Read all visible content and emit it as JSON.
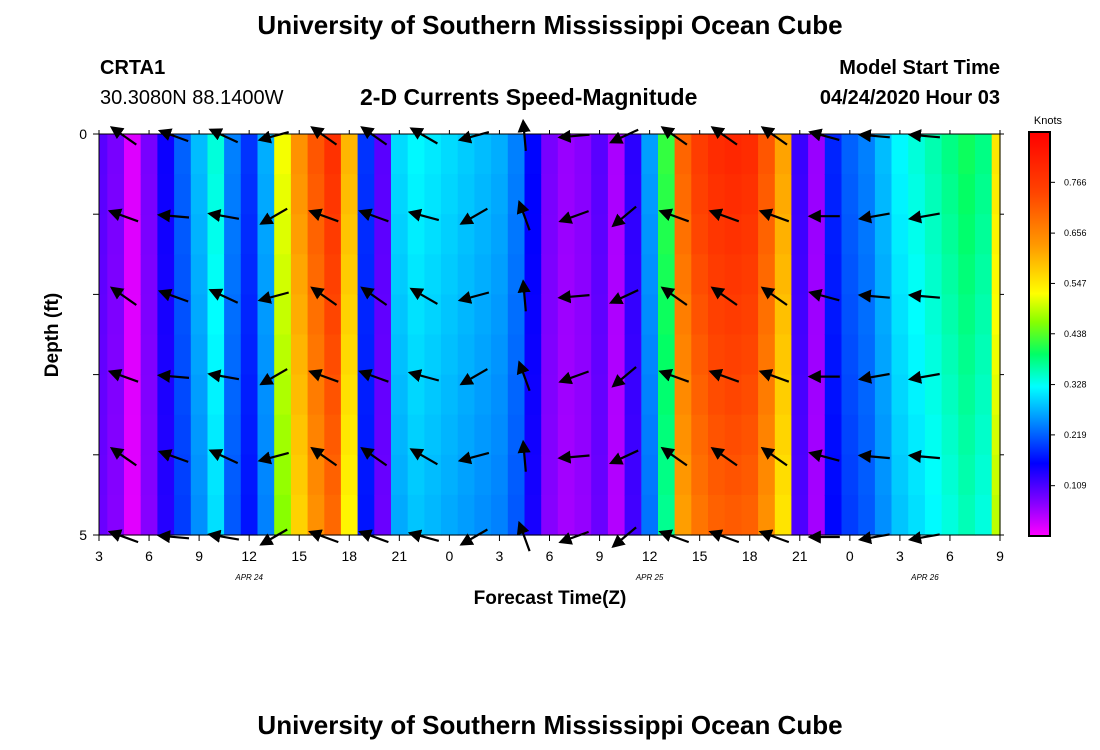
{
  "page": {
    "title_top": "University of Southern Mississippi Ocean Cube",
    "title_bottom": "University of Southern Mississippi Ocean Cube",
    "station": "CRTA1",
    "location": "30.3080N 88.1400W",
    "plot_title": "2-D Currents Speed-Magnitude",
    "model_start_label": "Model Start Time",
    "model_start_value": "04/24/2020 Hour 03"
  },
  "chart_data": {
    "type": "heatmap",
    "title": "2-D Currents Speed-Magnitude",
    "xlabel": "Forecast Time(Z)",
    "ylabel": "Depth (ft)",
    "x_tick_labels": [
      "3",
      "6",
      "9",
      "12",
      "15",
      "18",
      "21",
      "0",
      "3",
      "6",
      "9",
      "12",
      "15",
      "18",
      "21",
      "0",
      "3",
      "6",
      "9"
    ],
    "x_hours": [
      0,
      3,
      6,
      9,
      12,
      15,
      18,
      21,
      24,
      27,
      30,
      33,
      36,
      39,
      42,
      45,
      48,
      51,
      54
    ],
    "date_labels": [
      {
        "label": "APR 24",
        "hour": 9
      },
      {
        "label": "APR 25",
        "hour": 33
      },
      {
        "label": "APR 26",
        "hour": 49.5
      }
    ],
    "y_tick_labels": [
      "0",
      "5"
    ],
    "ylim": [
      0,
      5
    ],
    "colorbar": {
      "unit": "Knots",
      "tick_labels": [
        "0.109",
        "0.219",
        "0.328",
        "0.438",
        "0.547",
        "0.656",
        "0.766"
      ],
      "tick_values": [
        0.109,
        0.219,
        0.328,
        0.438,
        0.547,
        0.656,
        0.766
      ],
      "range": [
        0,
        0.875
      ]
    },
    "speed_profile": {
      "hours": [
        0,
        1,
        2,
        3,
        4,
        5,
        6,
        7,
        8,
        9,
        10,
        11,
        12,
        13,
        14,
        15,
        16,
        17,
        18,
        19,
        20,
        21,
        22,
        23,
        24,
        25,
        26,
        27,
        28,
        29,
        30,
        31,
        32,
        33,
        34,
        35,
        36,
        37,
        38,
        39,
        40,
        41,
        42,
        43,
        44,
        45,
        46,
        47,
        48,
        49,
        50,
        51,
        52,
        53,
        54
      ],
      "speed": [
        0.1,
        0.08,
        0.02,
        0.08,
        0.15,
        0.22,
        0.28,
        0.34,
        0.24,
        0.19,
        0.27,
        0.52,
        0.64,
        0.72,
        0.78,
        0.6,
        0.19,
        0.1,
        0.3,
        0.32,
        0.31,
        0.3,
        0.29,
        0.28,
        0.27,
        0.24,
        0.16,
        0.08,
        0.06,
        0.07,
        0.1,
        0.05,
        0.13,
        0.26,
        0.42,
        0.7,
        0.76,
        0.79,
        0.8,
        0.79,
        0.72,
        0.62,
        0.12,
        0.06,
        0.18,
        0.22,
        0.24,
        0.28,
        0.32,
        0.34,
        0.36,
        0.38,
        0.4,
        0.38,
        0.55
      ]
    }
  }
}
